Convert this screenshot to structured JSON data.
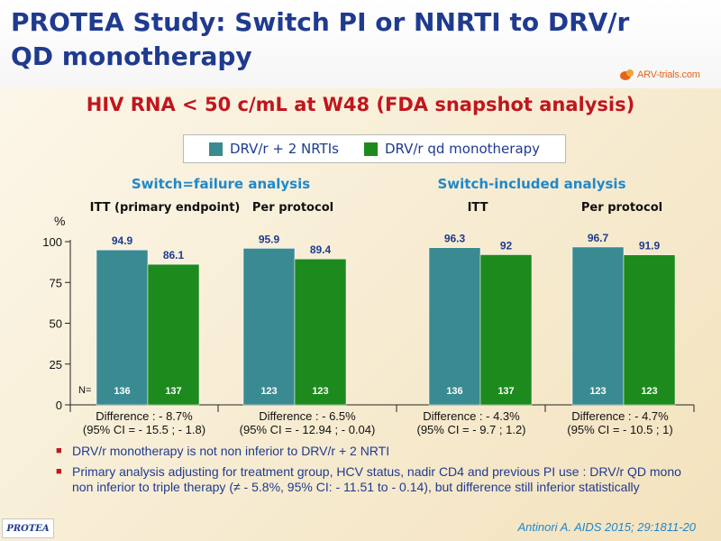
{
  "title": "PROTEA Study: Switch PI or NNRTI to DRV/r QD monotherapy",
  "logo_text": "ARV-trials.com",
  "subtitle": "HIV RNA < 50 c/mL at W48 (FDA snapshot analysis)",
  "colors": {
    "series1": "#3a8a92",
    "series2": "#1d8a1d",
    "title": "#1f3b8f",
    "subtitle": "#c0161e",
    "section": "#1e88cc"
  },
  "sections": {
    "switch_failure": "Switch=failure analysis",
    "switch_included": "Switch-included analysis"
  },
  "chart_data": {
    "type": "bar",
    "ylabel": "%",
    "ylim": [
      0,
      100
    ],
    "yticks": [
      "0",
      "25",
      "50",
      "75",
      "100"
    ],
    "n_label": "N=",
    "categories": [
      "ITT (primary endpoint)",
      "Per protocol",
      "ITT",
      "Per protocol"
    ],
    "series": [
      {
        "name": "DRV/r + 2 NRTIs",
        "values": [
          94.9,
          95.9,
          96.3,
          96.7
        ],
        "labels": [
          "94.9",
          "95.9",
          "96.3",
          "96.7"
        ],
        "n": [
          "136",
          "123",
          "136",
          "123"
        ]
      },
      {
        "name": "DRV/r qd monotherapy",
        "values": [
          86.1,
          89.4,
          92,
          91.9
        ],
        "labels": [
          "86.1",
          "89.4",
          "92",
          "91.9"
        ],
        "n": [
          "137",
          "123",
          "137",
          "123"
        ]
      }
    ],
    "differences": [
      [
        "Difference : - 8.7%",
        "(95% CI = - 15.5 ; - 1.8)"
      ],
      [
        "Difference : - 6.5%",
        "(95% CI = - 12.94 ; - 0.04)"
      ],
      [
        "Difference : - 4.3%",
        "(95% CI = - 9.7 ; 1.2)"
      ],
      [
        "Difference : - 4.7%",
        "(95% CI = - 10.5 ; 1)"
      ]
    ]
  },
  "bullets": [
    "DRV/r monotherapy is not non inferior to DRV/r + 2 NRTI",
    "Primary analysis adjusting for treatment group, HCV status, nadir CD4 and previous PI use : DRV/r QD mono non inferior to triple therapy (≠ - 5.8%, 95% CI: - 11.51 to - 0.14), but difference still inferior statistically"
  ],
  "footer_badge": "PROTEA",
  "citation": "Antinori A. AIDS 2015; 29:1811-20"
}
